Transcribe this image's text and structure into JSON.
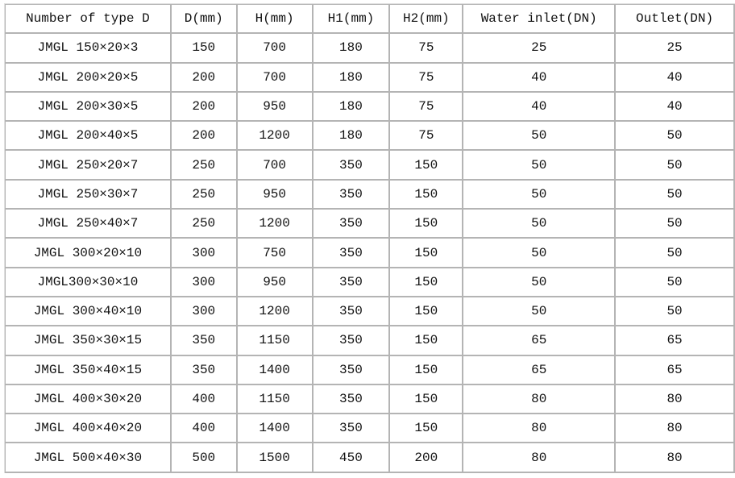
{
  "headers": [
    "Number of type D",
    "D(mm)",
    "H(mm)",
    "H1(mm)",
    "H2(mm)",
    "Water inlet(DN)",
    "Outlet(DN)"
  ],
  "rows": [
    [
      "JMGL 150×20×3",
      "150",
      "700",
      "180",
      "75",
      "25",
      "25"
    ],
    [
      "JMGL 200×20×5",
      "200",
      "700",
      "180",
      "75",
      "40",
      "40"
    ],
    [
      "JMGL 200×30×5",
      "200",
      "950",
      "180",
      "75",
      "40",
      "40"
    ],
    [
      "JMGL 200×40×5",
      "200",
      "1200",
      "180",
      "75",
      "50",
      "50"
    ],
    [
      "JMGL 250×20×7",
      "250",
      "700",
      "350",
      "150",
      "50",
      "50"
    ],
    [
      "JMGL 250×30×7",
      "250",
      "950",
      "350",
      "150",
      "50",
      "50"
    ],
    [
      "JMGL 250×40×7",
      "250",
      "1200",
      "350",
      "150",
      "50",
      "50"
    ],
    [
      "JMGL 300×20×10",
      "300",
      "750",
      "350",
      "150",
      "50",
      "50"
    ],
    [
      "JMGL300×30×10",
      "300",
      "950",
      "350",
      "150",
      "50",
      "50"
    ],
    [
      "JMGL 300×40×10",
      "300",
      "1200",
      "350",
      "150",
      "50",
      "50"
    ],
    [
      "JMGL 350×30×15",
      "350",
      "1150",
      "350",
      "150",
      "65",
      "65"
    ],
    [
      "JMGL 350×40×15",
      "350",
      "1400",
      "350",
      "150",
      "65",
      "65"
    ],
    [
      "JMGL 400×30×20",
      "400",
      "1150",
      "350",
      "150",
      "80",
      "80"
    ],
    [
      "JMGL 400×40×20",
      "400",
      "1400",
      "350",
      "150",
      "80",
      "80"
    ],
    [
      "JMGL 500×40×30",
      "500",
      "1500",
      "450",
      "200",
      "80",
      "80"
    ]
  ]
}
